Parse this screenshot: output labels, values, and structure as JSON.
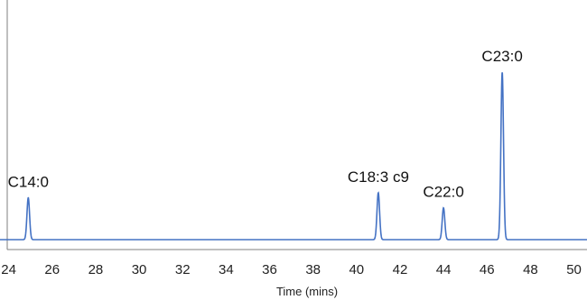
{
  "chart_data": {
    "type": "line",
    "title": "",
    "xlabel": "Time (mins)",
    "ylabel": "",
    "xlim": [
      23.6,
      50.6
    ],
    "ylim": [
      0,
      100
    ],
    "xticks": [
      24,
      26,
      28,
      30,
      32,
      34,
      36,
      38,
      40,
      42,
      44,
      46,
      48,
      50
    ],
    "baseline": 0,
    "peaks": [
      {
        "label": "C14:0",
        "x": 24.9,
        "height": 25
      },
      {
        "label": "C18:3 c9",
        "x": 41.0,
        "height": 28
      },
      {
        "label": "C22:0",
        "x": 44.0,
        "height": 19
      },
      {
        "label": "C23:0",
        "x": 46.7,
        "height": 100
      }
    ],
    "colors": {
      "series": "#4472c4",
      "axis": "#7f7f7f"
    }
  }
}
